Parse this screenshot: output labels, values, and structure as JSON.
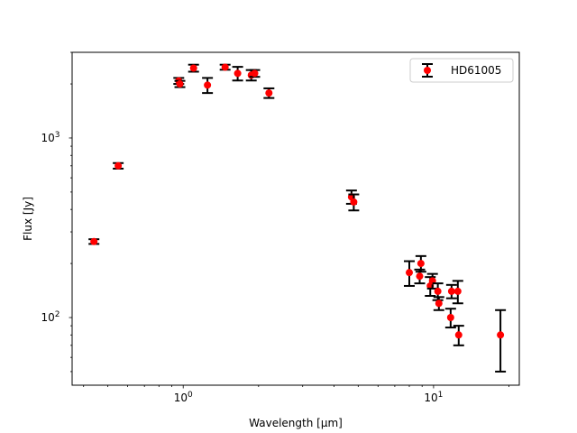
{
  "chart_data": {
    "type": "scatter",
    "title": "",
    "xlabel": "Wavelength [μm]",
    "ylabel": "Flux [Jy]",
    "xscale": "log",
    "yscale": "log",
    "xlim": [
      0.36,
      22
    ],
    "ylim": [
      42,
      3000
    ],
    "grid": false,
    "legend": {
      "position": "top-right",
      "entries": [
        "HD61005"
      ]
    },
    "x_ticks": [
      {
        "value": 1,
        "base": "10",
        "exp": "0"
      },
      {
        "value": 10,
        "base": "10",
        "exp": "1"
      }
    ],
    "y_ticks": [
      {
        "value": 100,
        "base": "10",
        "exp": "2"
      },
      {
        "value": 1000,
        "base": "10",
        "exp": "3"
      }
    ],
    "series": [
      {
        "name": "HD61005",
        "marker_color": "#ff0000",
        "errorbar_color": "#000000",
        "points": [
          {
            "x": 0.44,
            "y": 265,
            "err": 8
          },
          {
            "x": 0.55,
            "y": 700,
            "err": 25
          },
          {
            "x": 0.96,
            "y": 2080,
            "err": 80
          },
          {
            "x": 0.97,
            "y": 2000,
            "err": 80
          },
          {
            "x": 1.1,
            "y": 2450,
            "err": 110
          },
          {
            "x": 1.25,
            "y": 1970,
            "err": 190
          },
          {
            "x": 1.47,
            "y": 2480,
            "err": 80
          },
          {
            "x": 1.65,
            "y": 2290,
            "err": 200
          },
          {
            "x": 1.87,
            "y": 2240,
            "err": 150
          },
          {
            "x": 1.93,
            "y": 2290,
            "err": 100
          },
          {
            "x": 2.2,
            "y": 1780,
            "err": 110
          },
          {
            "x": 4.7,
            "y": 470,
            "err": 40
          },
          {
            "x": 4.8,
            "y": 440,
            "err": 45
          },
          {
            "x": 8.0,
            "y": 178,
            "err": 28
          },
          {
            "x": 8.8,
            "y": 170,
            "err": 15
          },
          {
            "x": 8.9,
            "y": 200,
            "err": 20
          },
          {
            "x": 9.7,
            "y": 150,
            "err": 18
          },
          {
            "x": 9.9,
            "y": 160,
            "err": 15
          },
          {
            "x": 10.4,
            "y": 140,
            "err": 15
          },
          {
            "x": 10.5,
            "y": 120,
            "err": 10
          },
          {
            "x": 11.7,
            "y": 100,
            "err": 12
          },
          {
            "x": 11.8,
            "y": 140,
            "err": 12
          },
          {
            "x": 12.5,
            "y": 140,
            "err": 20
          },
          {
            "x": 12.6,
            "y": 80,
            "err": 10
          },
          {
            "x": 18.5,
            "y": 80,
            "err": 30
          }
        ]
      }
    ]
  }
}
